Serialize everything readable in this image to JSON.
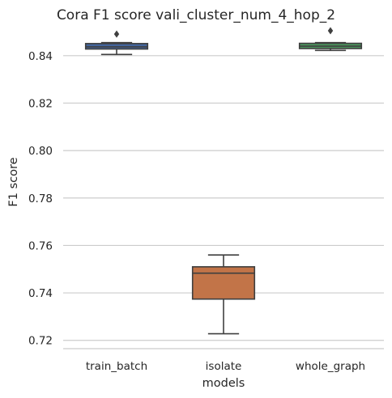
{
  "chart_data": {
    "type": "box",
    "title": "Cora F1 score vali_cluster_num_4_hop_2",
    "xlabel": "models",
    "ylabel": "F1 score",
    "categories": [
      "train_batch",
      "isolate",
      "whole_graph"
    ],
    "ylim": [
      0.7165,
      0.8505
    ],
    "yticks": [
      0.72,
      0.74,
      0.76,
      0.78,
      0.8,
      0.82,
      0.84
    ],
    "ytick_labels": [
      "0.72",
      "0.74",
      "0.76",
      "0.78",
      "0.80",
      "0.82",
      "0.84"
    ],
    "grid": true,
    "boxes": [
      {
        "name": "train_batch",
        "color": "#4c72b0",
        "whisker_low": 0.8405,
        "q1": 0.8428,
        "median": 0.8437,
        "q3": 0.8451,
        "whisker_high": 0.8455,
        "outliers": [
          0.8491
        ]
      },
      {
        "name": "isolate",
        "color": "#dd8452",
        "whisker_low": 0.7228,
        "q1": 0.7374,
        "median": 0.7483,
        "q3": 0.751,
        "whisker_high": 0.756,
        "outliers": []
      },
      {
        "name": "whole_graph",
        "color": "#55a868",
        "whisker_low": 0.8422,
        "q1": 0.843,
        "median": 0.844,
        "q3": 0.8452,
        "whisker_high": 0.8455,
        "outliers": [
          0.8505
        ]
      }
    ]
  }
}
